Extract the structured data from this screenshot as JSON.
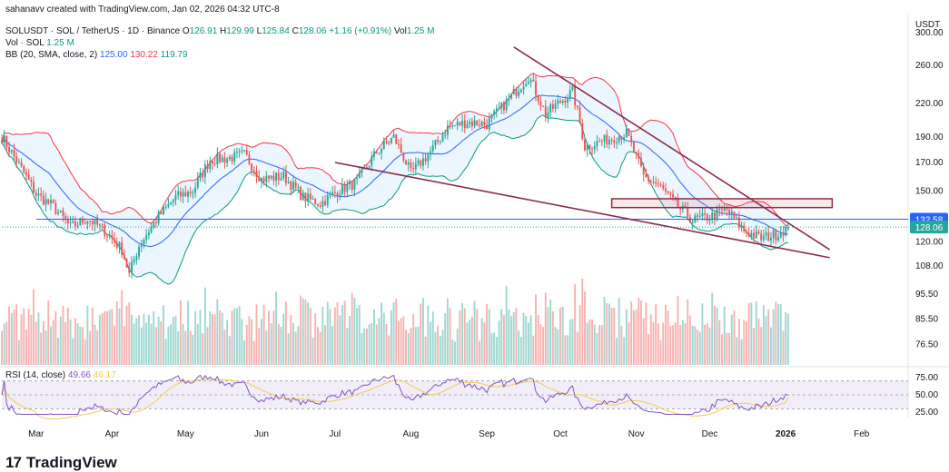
{
  "byline": "sahanavv created with TradingView.com, Jan 02, 2026 04:32 UTC-8",
  "header": {
    "symbol": "SOLUSDT · SOL / TetherUS · 1D · Binance",
    "o_label": "O",
    "o": "126.91",
    "h_label": "H",
    "h": "129.99",
    "l_label": "L",
    "l": "125.84",
    "c_label": "C",
    "c": "128.06",
    "change": "+1.16 (+0.91%)",
    "vol_label": "Vol",
    "vol": "1.25 M"
  },
  "volume_legend": {
    "label": "Vol · SOL",
    "value": "1.25 M"
  },
  "bb_legend": {
    "label": "BB (20, SMA, close, 2)",
    "basis": "125.00",
    "upper": "130.22",
    "lower": "119.79"
  },
  "rsi_legend": {
    "label": "RSI (14, close)",
    "rsi": "49.66",
    "ma": "46.17"
  },
  "brand": "TradingView",
  "colors": {
    "up": "#26a69a",
    "down": "#ef5350",
    "bb_basis": "#2962ff",
    "bb_upper": "#f23645",
    "bb_lower": "#089981",
    "trendline": "#8e2a4a",
    "hline": "#2962ff",
    "rsi": "#7e57c2",
    "rsi_ma": "#f7c948"
  },
  "price_labels": {
    "level": "132.58",
    "last": "128.06"
  },
  "chart_data": {
    "type": "candlestick",
    "symbol": "SOLUSDT",
    "currency": "USDT",
    "y_scale": "log",
    "ylim": [
      70,
      320
    ],
    "y_ticks": [
      "300.00",
      "260.00",
      "220.00",
      "190.00",
      "170.00",
      "150.00",
      "120.00",
      "108.00",
      "95.50",
      "85.50",
      "76.50"
    ],
    "x_tick_labels": [
      "Mar",
      "Apr",
      "May",
      "Jun",
      "Jul",
      "Aug",
      "Sep",
      "Oct",
      "Nov",
      "Dec",
      "2026",
      "Feb"
    ],
    "x_start": "2025-02-15",
    "x_end": "2026-02-20",
    "last_date": "2026-01-02",
    "close_anchors": [
      [
        "2025-02-15",
        190
      ],
      [
        "2025-02-22",
        168
      ],
      [
        "2025-03-01",
        148
      ],
      [
        "2025-03-08",
        140
      ],
      [
        "2025-03-15",
        128
      ],
      [
        "2025-03-22",
        133
      ],
      [
        "2025-03-29",
        126
      ],
      [
        "2025-04-05",
        116
      ],
      [
        "2025-04-08",
        104
      ],
      [
        "2025-04-12",
        118
      ],
      [
        "2025-04-20",
        134
      ],
      [
        "2025-04-27",
        146
      ],
      [
        "2025-05-04",
        150
      ],
      [
        "2025-05-11",
        172
      ],
      [
        "2025-05-18",
        173
      ],
      [
        "2025-05-25",
        176
      ],
      [
        "2025-06-01",
        158
      ],
      [
        "2025-06-10",
        160
      ],
      [
        "2025-06-18",
        146
      ],
      [
        "2025-06-25",
        142
      ],
      [
        "2025-07-02",
        150
      ],
      [
        "2025-07-10",
        156
      ],
      [
        "2025-07-18",
        178
      ],
      [
        "2025-07-25",
        190
      ],
      [
        "2025-08-01",
        162
      ],
      [
        "2025-08-09",
        178
      ],
      [
        "2025-08-16",
        198
      ],
      [
        "2025-08-24",
        203
      ],
      [
        "2025-09-01",
        201
      ],
      [
        "2025-09-10",
        224
      ],
      [
        "2025-09-18",
        248
      ],
      [
        "2025-09-25",
        210
      ],
      [
        "2025-10-01",
        222
      ],
      [
        "2025-10-06",
        232
      ],
      [
        "2025-10-11",
        182
      ],
      [
        "2025-10-20",
        188
      ],
      [
        "2025-10-28",
        193
      ],
      [
        "2025-11-04",
        160
      ],
      [
        "2025-11-10",
        154
      ],
      [
        "2025-11-18",
        140
      ],
      [
        "2025-11-24",
        132
      ],
      [
        "2025-12-01",
        134
      ],
      [
        "2025-12-08",
        138
      ],
      [
        "2025-12-15",
        126
      ],
      [
        "2025-12-22",
        122
      ],
      [
        "2025-12-28",
        124
      ],
      [
        "2026-01-02",
        128.06
      ]
    ],
    "horizontal_line": 132.58,
    "resistance_zone": [
      139.5,
      145
    ],
    "trendlines": [
      {
        "name": "upper",
        "from": [
          "2025-09-12",
          282
        ],
        "to": [
          "2026-01-19",
          116
        ]
      },
      {
        "name": "lower",
        "from": [
          "2025-07-01",
          170
        ],
        "to": [
          "2026-01-19",
          112
        ]
      }
    ],
    "rsi_ticks": [
      "75.00",
      "50.00",
      "25.00"
    ],
    "rsi_levels": [
      70,
      50,
      30
    ],
    "rsi_last": 49.66,
    "rsi_ma_last": 46.17
  }
}
